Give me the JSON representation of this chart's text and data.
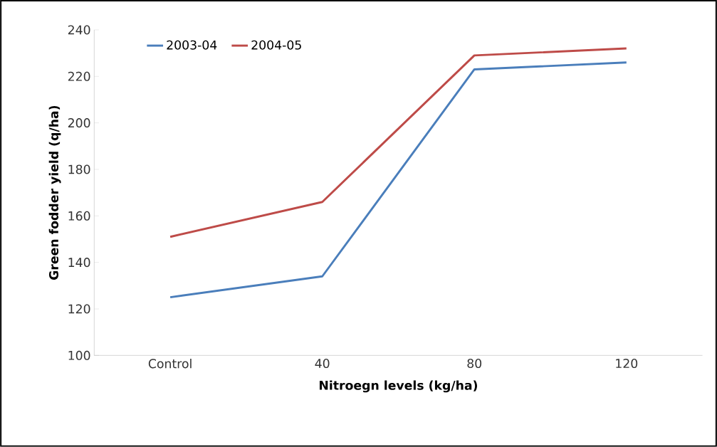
{
  "chart_data": {
    "type": "line",
    "xlabel": "Nitroegn levels (kg/ha)",
    "ylabel": "Green fodder yield (q/ha)",
    "categories": [
      "Control",
      "40",
      "80",
      "120"
    ],
    "series": [
      {
        "name": "2003-04",
        "color": "#4a7ebb",
        "values": [
          125,
          134,
          223,
          226
        ]
      },
      {
        "name": "2004-05",
        "color": "#be4b48",
        "values": [
          151,
          166,
          229,
          232
        ]
      }
    ],
    "ylim": [
      100,
      240
    ],
    "yticks": [
      100,
      120,
      140,
      160,
      180,
      200,
      220,
      240
    ],
    "grid": false,
    "legend": "top left",
    "marker": "none",
    "line_style": "solid"
  }
}
